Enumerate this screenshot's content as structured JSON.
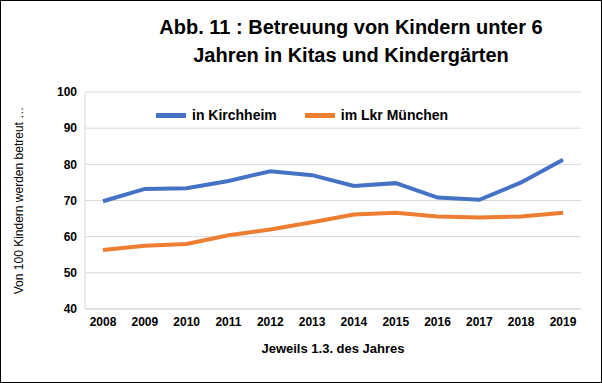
{
  "chart_data": {
    "type": "line",
    "title": "Abb. 11 : Betreuung von Kindern unter 6 Jahren in Kitas und Kindergärten",
    "x_label": "Jeweils 1.3. des Jahres",
    "y_label": "Von 100 Kindern werden betreut …",
    "categories": [
      "2008",
      "2009",
      "2010",
      "2011",
      "2012",
      "2013",
      "2014",
      "2015",
      "2016",
      "2017",
      "2018",
      "2019"
    ],
    "series": [
      {
        "name": "in Kirchheim",
        "color": "#4472c4",
        "values": [
          69.8,
          73.2,
          73.4,
          75.4,
          78.1,
          77.0,
          74.0,
          74.8,
          70.8,
          70.2,
          75.0,
          81.3
        ]
      },
      {
        "name": "im Lkr München",
        "color": "#ed7d31",
        "values": [
          56.3,
          57.5,
          58.0,
          60.4,
          62.0,
          64.0,
          66.1,
          66.6,
          65.6,
          65.3,
          65.6,
          66.6
        ]
      }
    ],
    "ylim": [
      40,
      100
    ],
    "yticks": [
      40,
      50,
      60,
      70,
      80,
      90,
      100
    ],
    "grid": true,
    "legend": "top"
  }
}
